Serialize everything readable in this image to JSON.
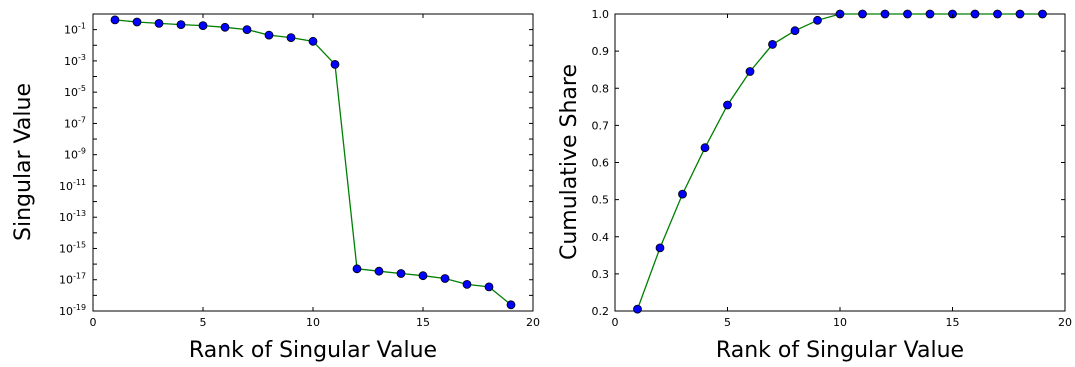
{
  "chart_data": [
    {
      "type": "line",
      "title": "",
      "xlabel": "Rank of Singular Value",
      "ylabel": "Singular Value",
      "xlim": [
        0,
        20
      ],
      "ylim_exponent": [
        -19,
        0
      ],
      "yscale": "log",
      "grid": false,
      "line_color": "#007f00",
      "marker_color": "#0000ff",
      "x_ticks": [
        "0",
        "5",
        "10",
        "15",
        "20"
      ],
      "y_tick_base": "10",
      "y_tick_exponents": [
        "-1",
        "-3",
        "-5",
        "-7",
        "-9",
        "-11",
        "-13",
        "-15",
        "-17",
        "-19"
      ],
      "x": [
        1,
        2,
        3,
        4,
        5,
        6,
        7,
        8,
        9,
        10,
        11,
        12,
        13,
        14,
        15,
        16,
        17,
        18,
        19
      ],
      "values": [
        0.42,
        0.31,
        0.25,
        0.21,
        0.18,
        0.14,
        0.1,
        0.045,
        0.031,
        0.018,
        0.0006,
        5e-17,
        3.5e-17,
        2.5e-17,
        1.8e-17,
        1.2e-17,
        5e-18,
        3.5e-18,
        2.5e-19
      ]
    },
    {
      "type": "line",
      "title": "",
      "xlabel": "Rank of Singular Value",
      "ylabel": "Cumulative Share",
      "xlim": [
        0,
        20
      ],
      "ylim": [
        0.2,
        1.0
      ],
      "grid": false,
      "line_color": "#007f00",
      "marker_color": "#0000ff",
      "x_ticks": [
        "0",
        "5",
        "10",
        "15",
        "20"
      ],
      "y_ticks": [
        "0.2",
        "0.3",
        "0.4",
        "0.5",
        "0.6",
        "0.7",
        "0.8",
        "0.9",
        "1.0"
      ],
      "x": [
        1,
        2,
        3,
        4,
        5,
        6,
        7,
        8,
        9,
        10,
        11,
        12,
        13,
        14,
        15,
        16,
        17,
        18,
        19
      ],
      "values": [
        0.205,
        0.37,
        0.515,
        0.64,
        0.755,
        0.845,
        0.918,
        0.955,
        0.983,
        1.0,
        1.0,
        1.0,
        1.0,
        1.0,
        1.0,
        1.0,
        1.0,
        1.0,
        1.0
      ]
    }
  ]
}
